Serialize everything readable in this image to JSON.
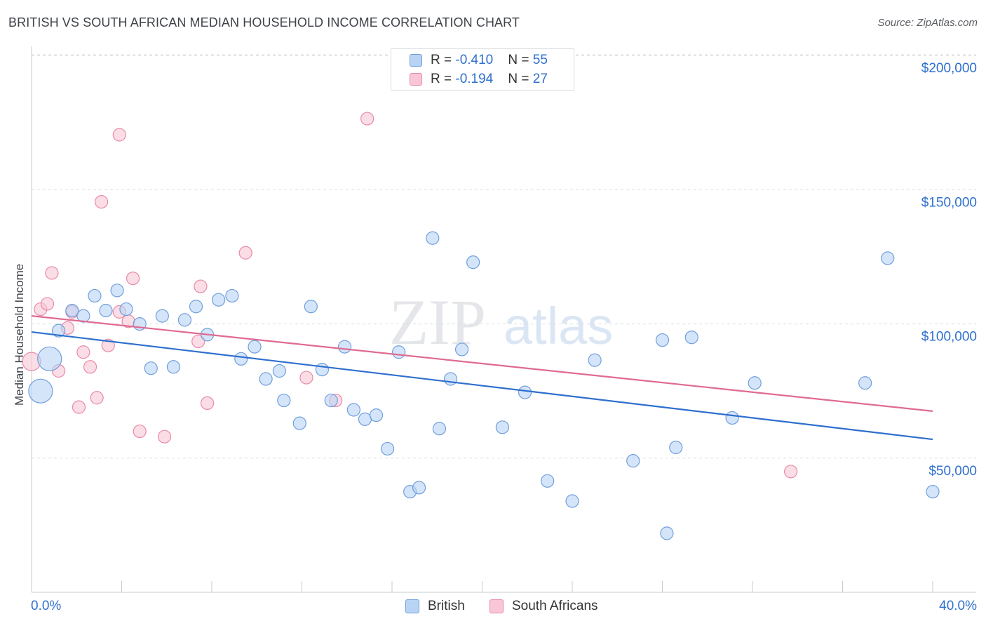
{
  "header": {
    "title": "BRITISH VS SOUTH AFRICAN MEDIAN HOUSEHOLD INCOME CORRELATION CHART",
    "source": "Source: ZipAtlas.com"
  },
  "watermark": {
    "zip": "ZIP",
    "atlas": "atlas"
  },
  "legend_top": {
    "rows": [
      {
        "r_label": "R = ",
        "r_value": "-0.410",
        "n_label": "N = ",
        "n_value": "55"
      },
      {
        "r_label": "R = ",
        "r_value": "-0.194",
        "n_label": "N = ",
        "n_value": "27"
      }
    ]
  },
  "colors": {
    "british_fill": "#b9d3f5",
    "british_stroke": "#6f9fdc",
    "british_line": "#2e6fce",
    "sa_fill": "#f8c6d5",
    "sa_stroke": "#e88aa8",
    "sa_line": "#e06a92",
    "axis_label": "#2e6fce",
    "grid": "#dcdee2"
  },
  "chart_data": {
    "type": "scatter",
    "title": "BRITISH VS SOUTH AFRICAN MEDIAN HOUSEHOLD INCOME CORRELATION CHART",
    "xlabel": "",
    "ylabel": "Median Household Income",
    "xlim": [
      0,
      40
    ],
    "ylim": [
      0,
      205000
    ],
    "x_tick_labels": [
      "0.0%",
      "40.0%"
    ],
    "y_ticks": [
      {
        "value": 50000,
        "label": "$50,000"
      },
      {
        "value": 100000,
        "label": "$100,000"
      },
      {
        "value": 150000,
        "label": "$150,000"
      },
      {
        "value": 200000,
        "label": "$200,000"
      }
    ],
    "grid": true,
    "legend_placement": "bottom-center",
    "series": [
      {
        "name": "British",
        "trend": {
          "x": [
            0,
            40
          ],
          "y": [
            97000,
            57000
          ]
        },
        "points": [
          {
            "x": 0.4,
            "y": 75000,
            "s": 3
          },
          {
            "x": 0.8,
            "y": 87000,
            "s": 3
          },
          {
            "x": 1.2,
            "y": 97500,
            "s": 1
          },
          {
            "x": 1.8,
            "y": 105000,
            "s": 1
          },
          {
            "x": 2.3,
            "y": 103000,
            "s": 1
          },
          {
            "x": 2.8,
            "y": 110500,
            "s": 1
          },
          {
            "x": 3.3,
            "y": 105000,
            "s": 1
          },
          {
            "x": 3.8,
            "y": 112500,
            "s": 1
          },
          {
            "x": 4.2,
            "y": 105500,
            "s": 1
          },
          {
            "x": 4.8,
            "y": 100000,
            "s": 1
          },
          {
            "x": 5.3,
            "y": 83500,
            "s": 1
          },
          {
            "x": 5.8,
            "y": 103000,
            "s": 1
          },
          {
            "x": 6.3,
            "y": 84000,
            "s": 1
          },
          {
            "x": 6.8,
            "y": 101500,
            "s": 1
          },
          {
            "x": 7.3,
            "y": 106500,
            "s": 1
          },
          {
            "x": 7.8,
            "y": 96000,
            "s": 1
          },
          {
            "x": 8.3,
            "y": 109000,
            "s": 1
          },
          {
            "x": 8.9,
            "y": 110500,
            "s": 1
          },
          {
            "x": 9.3,
            "y": 87000,
            "s": 1
          },
          {
            "x": 9.9,
            "y": 91500,
            "s": 1
          },
          {
            "x": 10.4,
            "y": 79500,
            "s": 1
          },
          {
            "x": 11.0,
            "y": 82500,
            "s": 1
          },
          {
            "x": 11.2,
            "y": 71500,
            "s": 1
          },
          {
            "x": 11.9,
            "y": 63000,
            "s": 1
          },
          {
            "x": 12.4,
            "y": 106500,
            "s": 1
          },
          {
            "x": 12.9,
            "y": 83000,
            "s": 1
          },
          {
            "x": 13.3,
            "y": 71500,
            "s": 1
          },
          {
            "x": 13.9,
            "y": 91500,
            "s": 1
          },
          {
            "x": 14.3,
            "y": 68000,
            "s": 1
          },
          {
            "x": 14.8,
            "y": 64500,
            "s": 1
          },
          {
            "x": 15.3,
            "y": 66000,
            "s": 1
          },
          {
            "x": 15.8,
            "y": 53500,
            "s": 1
          },
          {
            "x": 16.3,
            "y": 89500,
            "s": 1
          },
          {
            "x": 16.8,
            "y": 37500,
            "s": 1
          },
          {
            "x": 17.8,
            "y": 132000,
            "s": 1
          },
          {
            "x": 17.2,
            "y": 39000,
            "s": 1
          },
          {
            "x": 18.1,
            "y": 61000,
            "s": 1
          },
          {
            "x": 18.6,
            "y": 79500,
            "s": 1
          },
          {
            "x": 19.1,
            "y": 90500,
            "s": 1
          },
          {
            "x": 19.6,
            "y": 123000,
            "s": 1
          },
          {
            "x": 20.9,
            "y": 61500,
            "s": 1
          },
          {
            "x": 21.9,
            "y": 74500,
            "s": 1
          },
          {
            "x": 22.9,
            "y": 41500,
            "s": 1
          },
          {
            "x": 24.0,
            "y": 34000,
            "s": 1
          },
          {
            "x": 25.0,
            "y": 86500,
            "s": 1
          },
          {
            "x": 26.7,
            "y": 49000,
            "s": 1
          },
          {
            "x": 28.0,
            "y": 94000,
            "s": 1
          },
          {
            "x": 28.2,
            "y": 22000,
            "s": 1
          },
          {
            "x": 28.6,
            "y": 54000,
            "s": 1
          },
          {
            "x": 29.3,
            "y": 95000,
            "s": 1
          },
          {
            "x": 31.1,
            "y": 65000,
            "s": 1
          },
          {
            "x": 32.1,
            "y": 78000,
            "s": 1
          },
          {
            "x": 37.0,
            "y": 78000,
            "s": 1
          },
          {
            "x": 38.0,
            "y": 124500,
            "s": 1
          },
          {
            "x": 40.0,
            "y": 37500,
            "s": 1
          }
        ]
      },
      {
        "name": "South Africans",
        "trend": {
          "x": [
            0,
            40
          ],
          "y": [
            103000,
            67500
          ]
        },
        "points": [
          {
            "x": 0.0,
            "y": 86000,
            "s": 2
          },
          {
            "x": 0.4,
            "y": 105500,
            "s": 1
          },
          {
            "x": 0.7,
            "y": 107500,
            "s": 1
          },
          {
            "x": 0.9,
            "y": 119000,
            "s": 1
          },
          {
            "x": 1.2,
            "y": 82500,
            "s": 1
          },
          {
            "x": 1.6,
            "y": 98500,
            "s": 1
          },
          {
            "x": 1.8,
            "y": 104500,
            "s": 1
          },
          {
            "x": 2.1,
            "y": 69000,
            "s": 1
          },
          {
            "x": 2.3,
            "y": 89500,
            "s": 1
          },
          {
            "x": 2.6,
            "y": 84000,
            "s": 1
          },
          {
            "x": 2.9,
            "y": 72500,
            "s": 1
          },
          {
            "x": 3.1,
            "y": 145500,
            "s": 1
          },
          {
            "x": 3.4,
            "y": 92000,
            "s": 1
          },
          {
            "x": 3.9,
            "y": 104500,
            "s": 1
          },
          {
            "x": 3.9,
            "y": 170500,
            "s": 1
          },
          {
            "x": 4.3,
            "y": 101000,
            "s": 1
          },
          {
            "x": 4.5,
            "y": 117000,
            "s": 1
          },
          {
            "x": 4.8,
            "y": 60000,
            "s": 1
          },
          {
            "x": 5.9,
            "y": 58000,
            "s": 1
          },
          {
            "x": 7.4,
            "y": 93500,
            "s": 1
          },
          {
            "x": 7.5,
            "y": 114000,
            "s": 1
          },
          {
            "x": 7.8,
            "y": 70500,
            "s": 1
          },
          {
            "x": 9.5,
            "y": 126500,
            "s": 1
          },
          {
            "x": 12.2,
            "y": 80000,
            "s": 1
          },
          {
            "x": 13.5,
            "y": 71500,
            "s": 1
          },
          {
            "x": 14.9,
            "y": 176500,
            "s": 1
          },
          {
            "x": 33.7,
            "y": 45000,
            "s": 1
          }
        ]
      }
    ]
  }
}
